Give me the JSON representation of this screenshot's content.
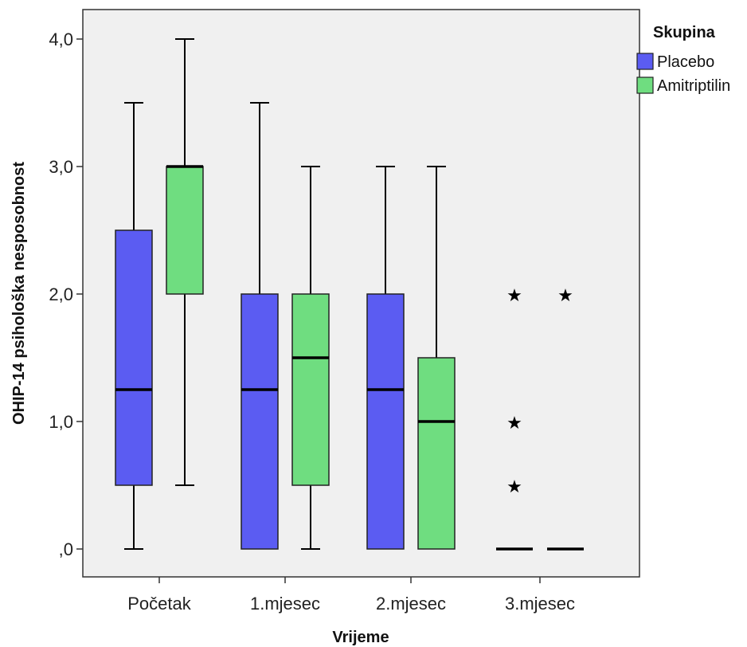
{
  "chart_data": {
    "type": "boxplot",
    "xlabel": "Vrijeme",
    "ylabel": "OHIP-14 psihološka nesposobnost",
    "ylim": [
      -0.25,
      4.2
    ],
    "yticks": [
      0,
      1,
      2,
      3,
      4
    ],
    "ytick_labels": [
      ",0",
      "1,0",
      "2,0",
      "3,0",
      "4,0"
    ],
    "grid": false,
    "plot_background": "#f0f0f0",
    "categories": [
      "Početak",
      "1.mjesec",
      "2.mjesec",
      "3.mjesec"
    ],
    "legend": {
      "title": "Skupina",
      "position": "top-right"
    },
    "series": [
      {
        "name": "Placebo",
        "color": "#5b5cf2",
        "boxes": [
          {
            "whisker_low": 0,
            "q1": 0.5,
            "median": 1.25,
            "q3": 2.5,
            "whisker_high": 3.5,
            "outliers": []
          },
          {
            "whisker_low": 0,
            "q1": 0,
            "median": 1.25,
            "q3": 2.0,
            "whisker_high": 3.5,
            "outliers": []
          },
          {
            "whisker_low": 0,
            "q1": 0,
            "median": 1.25,
            "q3": 2.0,
            "whisker_high": 3.0,
            "outliers": []
          },
          {
            "whisker_low": 0,
            "q1": 0,
            "median": 0,
            "q3": 0,
            "whisker_high": 0,
            "outliers": [
              0.5,
              1.0,
              2.0
            ]
          }
        ]
      },
      {
        "name": "Amitriptilin",
        "color": "#6fdd80",
        "boxes": [
          {
            "whisker_low": 0.5,
            "q1": 2.0,
            "median": 3.0,
            "q3": 3.0,
            "whisker_high": 4.0,
            "outliers": []
          },
          {
            "whisker_low": 0,
            "q1": 0.5,
            "median": 1.5,
            "q3": 2.0,
            "whisker_high": 3.0,
            "outliers": []
          },
          {
            "whisker_low": 0,
            "q1": 0,
            "median": 1.0,
            "q3": 1.5,
            "whisker_high": 3.0,
            "outliers": []
          },
          {
            "whisker_low": 0,
            "q1": 0,
            "median": 0,
            "q3": 0,
            "whisker_high": 0,
            "outliers": [
              2.0
            ]
          }
        ]
      }
    ]
  }
}
